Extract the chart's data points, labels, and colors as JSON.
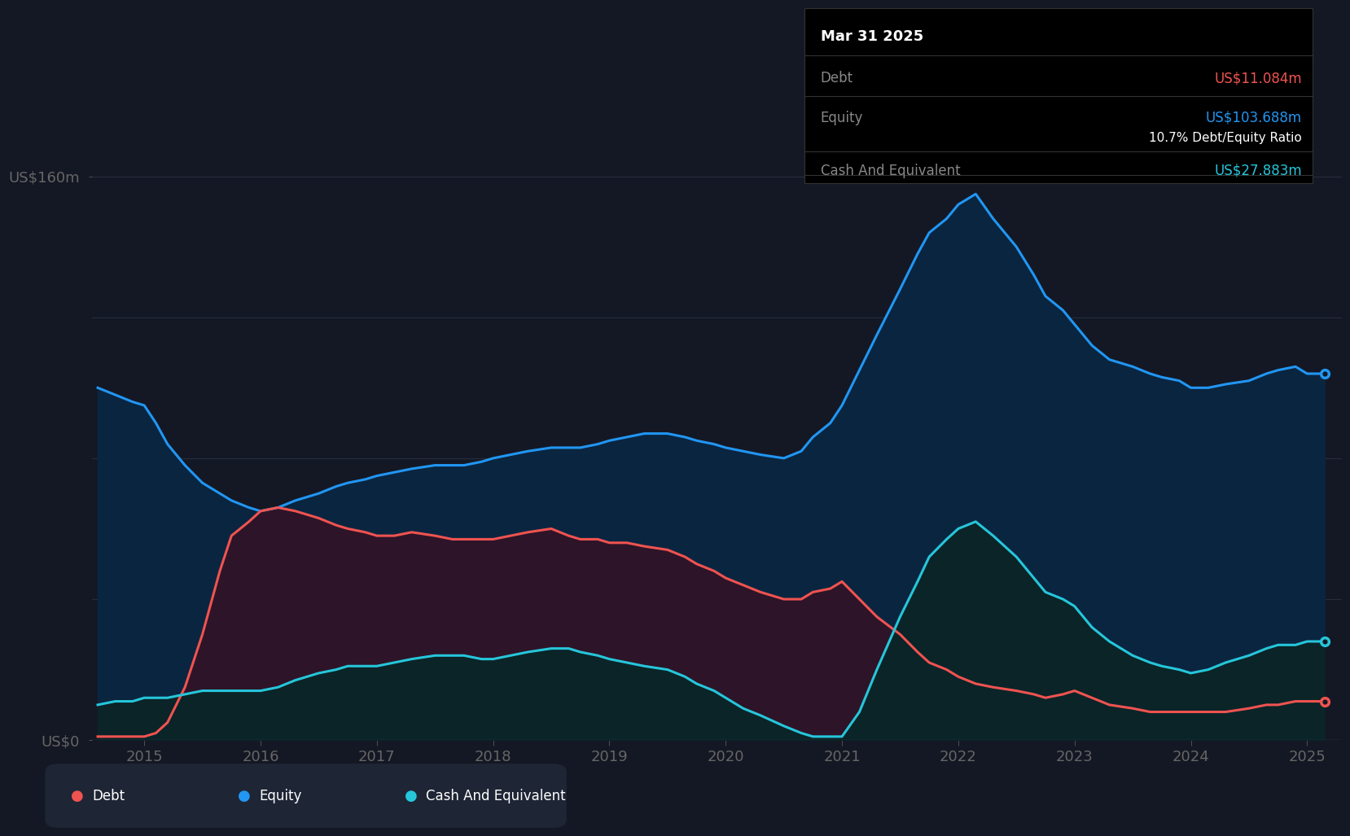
{
  "bg_color": "#141824",
  "plot_bg_color": "#141824",
  "equity_color": "#2196f3",
  "debt_color": "#ef5350",
  "cash_color": "#26c6da",
  "equity_fill": "#0a2540",
  "debt_fill": "#2d1428",
  "cash_fill": "#0a2428",
  "grid_color": "#252d3d",
  "tooltip_bg": "#000000",
  "tooltip_border": "#333333",
  "tooltip_title": "Mar 31 2025",
  "tooltip_debt_label": "Debt",
  "tooltip_debt_value": "US$11.084m",
  "tooltip_equity_label": "Equity",
  "tooltip_equity_value": "US$103.688m",
  "tooltip_ratio": "10.7% Debt/Equity Ratio",
  "tooltip_cash_label": "Cash And Equivalent",
  "tooltip_cash_value": "US$27.883m",
  "legend_debt": "Debt",
  "legend_equity": "Equity",
  "legend_cash": "Cash And Equivalent",
  "legend_bg": "#1e2535",
  "x_ticks": [
    2015,
    2016,
    2017,
    2018,
    2019,
    2020,
    2021,
    2022,
    2023,
    2024,
    2025
  ],
  "ylim": [
    0,
    175
  ],
  "ylabel_top": "US$160m",
  "ylabel_bot": "US$0",
  "years": [
    2014.6,
    2014.75,
    2014.9,
    2015.0,
    2015.1,
    2015.2,
    2015.35,
    2015.5,
    2015.65,
    2015.75,
    2015.9,
    2016.0,
    2016.15,
    2016.3,
    2016.5,
    2016.65,
    2016.75,
    2016.9,
    2017.0,
    2017.15,
    2017.3,
    2017.5,
    2017.65,
    2017.75,
    2017.9,
    2018.0,
    2018.15,
    2018.3,
    2018.5,
    2018.65,
    2018.75,
    2018.9,
    2019.0,
    2019.15,
    2019.3,
    2019.5,
    2019.65,
    2019.75,
    2019.9,
    2020.0,
    2020.15,
    2020.3,
    2020.5,
    2020.65,
    2020.75,
    2020.9,
    2021.0,
    2021.15,
    2021.3,
    2021.5,
    2021.65,
    2021.75,
    2021.9,
    2022.0,
    2022.15,
    2022.3,
    2022.5,
    2022.65,
    2022.75,
    2022.9,
    2023.0,
    2023.15,
    2023.3,
    2023.5,
    2023.65,
    2023.75,
    2023.9,
    2024.0,
    2024.15,
    2024.3,
    2024.5,
    2024.65,
    2024.75,
    2024.9,
    2025.0,
    2025.15
  ],
  "equity": [
    100,
    98,
    96,
    95,
    90,
    84,
    78,
    73,
    70,
    68,
    66,
    65,
    66,
    68,
    70,
    72,
    73,
    74,
    75,
    76,
    77,
    78,
    78,
    78,
    79,
    80,
    81,
    82,
    83,
    83,
    83,
    84,
    85,
    86,
    87,
    87,
    86,
    85,
    84,
    83,
    82,
    81,
    80,
    82,
    86,
    90,
    95,
    105,
    115,
    128,
    138,
    144,
    148,
    152,
    155,
    148,
    140,
    132,
    126,
    122,
    118,
    112,
    108,
    106,
    104,
    103,
    102,
    100,
    100,
    101,
    102,
    104,
    105,
    106,
    104,
    104
  ],
  "debt": [
    1,
    1,
    1,
    1,
    2,
    5,
    15,
    30,
    48,
    58,
    62,
    65,
    66,
    65,
    63,
    61,
    60,
    59,
    58,
    58,
    59,
    58,
    57,
    57,
    57,
    57,
    58,
    59,
    60,
    58,
    57,
    57,
    56,
    56,
    55,
    54,
    52,
    50,
    48,
    46,
    44,
    42,
    40,
    40,
    42,
    43,
    45,
    40,
    35,
    30,
    25,
    22,
    20,
    18,
    16,
    15,
    14,
    13,
    12,
    13,
    14,
    12,
    10,
    9,
    8,
    8,
    8,
    8,
    8,
    8,
    9,
    10,
    10,
    11,
    11,
    11
  ],
  "cash": [
    10,
    11,
    11,
    12,
    12,
    12,
    13,
    14,
    14,
    14,
    14,
    14,
    15,
    17,
    19,
    20,
    21,
    21,
    21,
    22,
    23,
    24,
    24,
    24,
    23,
    23,
    24,
    25,
    26,
    26,
    25,
    24,
    23,
    22,
    21,
    20,
    18,
    16,
    14,
    12,
    9,
    7,
    4,
    2,
    1,
    1,
    1,
    8,
    20,
    35,
    45,
    52,
    57,
    60,
    62,
    58,
    52,
    46,
    42,
    40,
    38,
    32,
    28,
    24,
    22,
    21,
    20,
    19,
    20,
    22,
    24,
    26,
    27,
    27,
    28,
    28
  ]
}
